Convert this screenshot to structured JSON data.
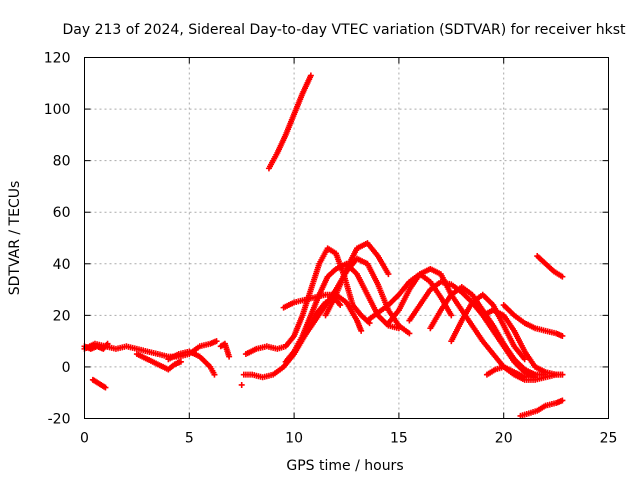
{
  "chart_data": {
    "type": "scatter",
    "title": "Day 213 of 2024, Sidereal Day-to-day VTEC variation (SDTVAR) for receiver hkst",
    "xlabel": "GPS time / hours",
    "ylabel": "SDTVAR / TECUs",
    "xlim": [
      0,
      25
    ],
    "ylim": [
      -20,
      120
    ],
    "xticks": [
      0,
      5,
      10,
      15,
      20,
      25
    ],
    "yticks": [
      -20,
      0,
      20,
      40,
      60,
      80,
      100,
      120
    ],
    "grid": true,
    "marker": "+",
    "color": "#ff0000",
    "series": [
      {
        "name": "s1",
        "x": [
          0.0,
          0.3,
          0.6,
          0.9,
          1.1
        ],
        "y": [
          8,
          7,
          8,
          7,
          9
        ]
      },
      {
        "name": "s2",
        "x": [
          0.0,
          0.5,
          1.0,
          1.5,
          2.0,
          2.5,
          3.0,
          3.5,
          4.0,
          4.5,
          5.0,
          5.5,
          6.0,
          6.3
        ],
        "y": [
          7,
          9,
          8,
          7,
          8,
          7,
          6,
          5,
          4,
          4,
          5,
          8,
          9,
          10
        ]
      },
      {
        "name": "s3",
        "x": [
          0.4,
          0.6,
          0.8,
          1.0
        ],
        "y": [
          -5,
          -6,
          -7,
          -8
        ]
      },
      {
        "name": "s4",
        "x": [
          2.5,
          3.0,
          3.5,
          4.0,
          4.3,
          4.6
        ],
        "y": [
          5,
          3,
          1,
          -1,
          1,
          2
        ]
      },
      {
        "name": "s5",
        "x": [
          4.0,
          4.5,
          5.0,
          5.5,
          6.0,
          6.2
        ],
        "y": [
          3,
          5,
          6,
          4,
          0,
          -3
        ]
      },
      {
        "name": "s6",
        "x": [
          6.5,
          6.7,
          6.9
        ],
        "y": [
          8,
          9,
          4
        ]
      },
      {
        "name": "s7",
        "x": [
          7.6,
          8.0,
          8.5,
          9.0,
          9.5,
          10.0,
          10.5,
          11.0,
          11.5,
          12.0,
          12.2
        ],
        "y": [
          -3,
          -3,
          -4,
          -3,
          0,
          5,
          12,
          20,
          25,
          26,
          24
        ]
      },
      {
        "name": "s8",
        "x": [
          7.7,
          8.2,
          8.7,
          9.2,
          9.6,
          10.0,
          10.4,
          10.8,
          11.2,
          11.6,
          12.0,
          12.4,
          12.8,
          13.2,
          13.6
        ],
        "y": [
          5,
          7,
          8,
          7,
          8,
          12,
          20,
          30,
          40,
          46,
          44,
          35,
          24,
          20,
          17
        ]
      },
      {
        "name": "s9",
        "x": [
          7.5
        ],
        "y": [
          -7
        ]
      },
      {
        "name": "s10",
        "x": [
          8.8,
          9.2,
          9.6,
          10.0,
          10.4,
          10.8
        ],
        "y": [
          77,
          83,
          90,
          98,
          106,
          113
        ]
      },
      {
        "name": "s11",
        "x": [
          9.5,
          10.0,
          10.5,
          11.0,
          11.5,
          12.0,
          12.5,
          13.0,
          13.2
        ],
        "y": [
          23,
          25,
          26,
          27,
          28,
          28,
          25,
          18,
          14
        ]
      },
      {
        "name": "s12",
        "x": [
          9.6,
          10.0,
          10.4,
          10.8,
          11.2,
          11.6,
          12.0,
          12.5,
          13.0,
          13.5,
          14.0,
          14.5,
          15.0
        ],
        "y": [
          2,
          6,
          12,
          20,
          28,
          35,
          38,
          40,
          36,
          28,
          20,
          16,
          15
        ]
      },
      {
        "name": "s13",
        "x": [
          10.5,
          11.0,
          11.5,
          12.0,
          12.5,
          13.0,
          13.5,
          14.0,
          14.5,
          15.0,
          15.5
        ],
        "y": [
          12,
          18,
          24,
          30,
          37,
          42,
          40,
          32,
          22,
          16,
          13
        ]
      },
      {
        "name": "s14",
        "x": [
          11.5,
          12.0,
          12.5,
          13.0,
          13.5,
          14.0,
          14.5
        ],
        "y": [
          20,
          28,
          38,
          46,
          48,
          43,
          36
        ]
      },
      {
        "name": "s15",
        "x": [
          13.5,
          14.0,
          14.5,
          15.0,
          15.5,
          16.0,
          16.5,
          17.0,
          17.5
        ],
        "y": [
          18,
          21,
          24,
          28,
          33,
          36,
          33,
          27,
          20
        ]
      },
      {
        "name": "s16",
        "x": [
          14.5,
          15.0,
          15.5,
          16.0,
          16.5,
          17.0,
          17.5,
          18.0,
          18.5,
          19.0,
          19.5,
          20.0,
          20.5,
          21.0,
          21.5,
          22.0,
          22.5,
          22.8
        ],
        "y": [
          17,
          22,
          30,
          36,
          38,
          36,
          28,
          22,
          16,
          10,
          5,
          0,
          -3,
          -5,
          -5,
          -4,
          -3,
          -3
        ]
      },
      {
        "name": "s17",
        "x": [
          15.5,
          16.0,
          16.5,
          17.0,
          17.5,
          18.0,
          18.5,
          19.0,
          19.5,
          20.0,
          20.5,
          21.0,
          21.5
        ],
        "y": [
          18,
          24,
          30,
          33,
          32,
          29,
          25,
          20,
          14,
          8,
          2,
          -2,
          -4
        ]
      },
      {
        "name": "s18",
        "x": [
          16.5,
          17.0,
          17.5,
          18.0,
          18.5,
          19.0,
          19.5,
          20.0,
          20.5,
          21.0,
          21.5,
          22.0
        ],
        "y": [
          15,
          22,
          28,
          31,
          28,
          22,
          16,
          9,
          3,
          -1,
          -3,
          -3
        ]
      },
      {
        "name": "s19",
        "x": [
          17.5,
          18.0,
          18.5,
          19.0,
          19.5,
          20.0,
          20.5,
          21.0
        ],
        "y": [
          10,
          18,
          25,
          28,
          24,
          16,
          8,
          3
        ]
      },
      {
        "name": "s20",
        "x": [
          19.0,
          19.5,
          20.0,
          20.5,
          21.0,
          21.5,
          22.0,
          22.5,
          22.8
        ],
        "y": [
          20,
          22,
          20,
          14,
          6,
          0,
          -2,
          -3,
          -3
        ]
      },
      {
        "name": "s21",
        "x": [
          19.2,
          19.6,
          20.0,
          20.5,
          21.0,
          21.5,
          22.0
        ],
        "y": [
          -3,
          -1,
          0,
          -2,
          -4,
          -3,
          -3
        ]
      },
      {
        "name": "s22",
        "x": [
          20.0,
          20.5,
          21.0,
          21.5,
          22.0,
          22.5,
          22.8
        ],
        "y": [
          24,
          20,
          17,
          15,
          14,
          13,
          12
        ]
      },
      {
        "name": "s23",
        "x": [
          20.8,
          21.2,
          21.6,
          22.0,
          22.5,
          22.8
        ],
        "y": [
          -19,
          -18,
          -17,
          -15,
          -14,
          -13
        ]
      },
      {
        "name": "s24",
        "x": [
          21.6,
          22.0,
          22.4,
          22.8
        ],
        "y": [
          43,
          40,
          37,
          35
        ]
      }
    ]
  }
}
